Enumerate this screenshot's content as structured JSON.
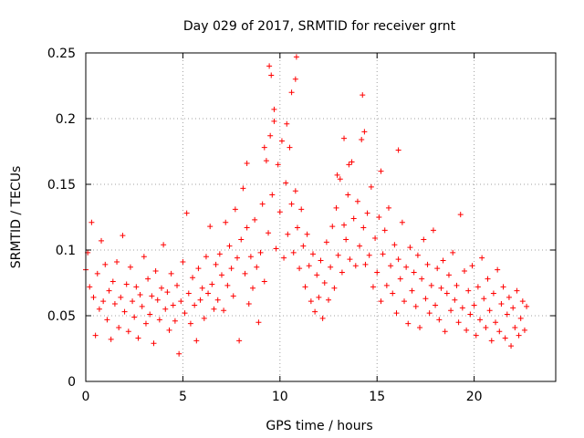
{
  "chart_data": {
    "type": "scatter",
    "title": "Day 029 of 2017, SRMTID for receiver grnt",
    "xlabel": "GPS time / hours",
    "ylabel": "SRMTID / TECUs",
    "xlim": [
      0,
      24.2
    ],
    "ylim": [
      0,
      0.25
    ],
    "xticks": [
      0,
      5,
      10,
      15,
      20
    ],
    "xtick_labels": [
      "0",
      "5",
      "10",
      "15",
      "20"
    ],
    "yticks": [
      0,
      0.05,
      0.1,
      0.15,
      0.2,
      0.25
    ],
    "ytick_labels": [
      "0",
      "0.05",
      "0.1",
      "0.15",
      "0.2",
      "0.25"
    ],
    "grid": true,
    "marker": "+",
    "color": "#ff0000",
    "series": [
      {
        "name": "SRMTID",
        "points": [
          [
            0.0,
            0.085
          ],
          [
            0.1,
            0.098
          ],
          [
            0.2,
            0.072
          ],
          [
            0.3,
            0.121
          ],
          [
            0.4,
            0.064
          ],
          [
            0.5,
            0.035
          ],
          [
            0.6,
            0.082
          ],
          [
            0.7,
            0.055
          ],
          [
            0.8,
            0.107
          ],
          [
            0.9,
            0.061
          ],
          [
            1.0,
            0.089
          ],
          [
            1.1,
            0.047
          ],
          [
            1.2,
            0.069
          ],
          [
            1.3,
            0.032
          ],
          [
            1.4,
            0.076
          ],
          [
            1.5,
            0.059
          ],
          [
            1.6,
            0.091
          ],
          [
            1.7,
            0.041
          ],
          [
            1.8,
            0.064
          ],
          [
            1.9,
            0.111
          ],
          [
            2.0,
            0.053
          ],
          [
            2.1,
            0.074
          ],
          [
            2.2,
            0.038
          ],
          [
            2.3,
            0.087
          ],
          [
            2.4,
            0.061
          ],
          [
            2.5,
            0.049
          ],
          [
            2.6,
            0.072
          ],
          [
            2.7,
            0.033
          ],
          [
            2.8,
            0.066
          ],
          [
            2.9,
            0.057
          ],
          [
            3.0,
            0.095
          ],
          [
            3.1,
            0.044
          ],
          [
            3.2,
            0.078
          ],
          [
            3.3,
            0.051
          ],
          [
            3.4,
            0.065
          ],
          [
            3.5,
            0.029
          ],
          [
            3.6,
            0.084
          ],
          [
            3.7,
            0.062
          ],
          [
            3.8,
            0.047
          ],
          [
            3.9,
            0.071
          ],
          [
            4.0,
            0.104
          ],
          [
            4.1,
            0.055
          ],
          [
            4.2,
            0.068
          ],
          [
            4.3,
            0.039
          ],
          [
            4.4,
            0.082
          ],
          [
            4.5,
            0.058
          ],
          [
            4.6,
            0.046
          ],
          [
            4.7,
            0.073
          ],
          [
            4.8,
            0.021
          ],
          [
            4.9,
            0.061
          ],
          [
            5.0,
            0.091
          ],
          [
            5.1,
            0.052
          ],
          [
            5.2,
            0.128
          ],
          [
            5.3,
            0.067
          ],
          [
            5.4,
            0.044
          ],
          [
            5.5,
            0.079
          ],
          [
            5.6,
            0.058
          ],
          [
            5.7,
            0.031
          ],
          [
            5.8,
            0.086
          ],
          [
            5.9,
            0.062
          ],
          [
            6.0,
            0.071
          ],
          [
            6.1,
            0.048
          ],
          [
            6.2,
            0.095
          ],
          [
            6.3,
            0.067
          ],
          [
            6.4,
            0.118
          ],
          [
            6.5,
            0.074
          ],
          [
            6.6,
            0.055
          ],
          [
            6.7,
            0.089
          ],
          [
            6.8,
            0.062
          ],
          [
            6.9,
            0.097
          ],
          [
            7.0,
            0.081
          ],
          [
            7.1,
            0.054
          ],
          [
            7.2,
            0.121
          ],
          [
            7.3,
            0.073
          ],
          [
            7.4,
            0.103
          ],
          [
            7.5,
            0.086
          ],
          [
            7.6,
            0.065
          ],
          [
            7.7,
            0.131
          ],
          [
            7.8,
            0.094
          ],
          [
            7.9,
            0.031
          ],
          [
            8.0,
            0.108
          ],
          [
            8.1,
            0.147
          ],
          [
            8.2,
            0.082
          ],
          [
            8.3,
            0.117
          ],
          [
            8.4,
            0.059
          ],
          [
            8.5,
            0.095
          ],
          [
            8.6,
            0.071
          ],
          [
            8.7,
            0.123
          ],
          [
            8.8,
            0.087
          ],
          [
            8.9,
            0.045
          ],
          [
            9.0,
            0.098
          ],
          [
            9.1,
            0.135
          ],
          [
            9.2,
            0.076
          ],
          [
            9.3,
            0.168
          ],
          [
            9.4,
            0.113
          ],
          [
            9.5,
            0.187
          ],
          [
            9.6,
            0.142
          ],
          [
            9.7,
            0.207
          ],
          [
            9.8,
            0.101
          ],
          [
            9.9,
            0.165
          ],
          [
            10.0,
            0.129
          ],
          [
            10.1,
            0.183
          ],
          [
            10.2,
            0.094
          ],
          [
            10.3,
            0.151
          ],
          [
            10.4,
            0.112
          ],
          [
            10.5,
            0.178
          ],
          [
            10.6,
            0.135
          ],
          [
            10.7,
            0.098
          ],
          [
            10.8,
            0.145
          ],
          [
            10.9,
            0.117
          ],
          [
            11.0,
            0.086
          ],
          [
            11.1,
            0.131
          ],
          [
            11.2,
            0.103
          ],
          [
            11.3,
            0.072
          ],
          [
            11.4,
            0.112
          ],
          [
            11.5,
            0.088
          ],
          [
            11.6,
            0.061
          ],
          [
            11.7,
            0.097
          ],
          [
            11.8,
            0.053
          ],
          [
            11.9,
            0.081
          ],
          [
            12.0,
            0.064
          ],
          [
            12.1,
            0.092
          ],
          [
            12.2,
            0.048
          ],
          [
            12.3,
            0.075
          ],
          [
            12.4,
            0.106
          ],
          [
            12.5,
            0.062
          ],
          [
            12.6,
            0.087
          ],
          [
            12.7,
            0.118
          ],
          [
            12.8,
            0.071
          ],
          [
            12.9,
            0.132
          ],
          [
            13.0,
            0.096
          ],
          [
            13.1,
            0.154
          ],
          [
            13.2,
            0.083
          ],
          [
            13.3,
            0.119
          ],
          [
            13.4,
            0.108
          ],
          [
            13.5,
            0.142
          ],
          [
            13.6,
            0.093
          ],
          [
            13.7,
            0.167
          ],
          [
            13.8,
            0.124
          ],
          [
            13.9,
            0.088
          ],
          [
            14.0,
            0.137
          ],
          [
            14.1,
            0.103
          ],
          [
            14.2,
            0.184
          ],
          [
            14.3,
            0.117
          ],
          [
            14.4,
            0.089
          ],
          [
            14.5,
            0.128
          ],
          [
            14.6,
            0.096
          ],
          [
            14.7,
            0.148
          ],
          [
            14.8,
            0.072
          ],
          [
            14.9,
            0.109
          ],
          [
            15.0,
            0.083
          ],
          [
            15.1,
            0.125
          ],
          [
            15.2,
            0.061
          ],
          [
            15.3,
            0.097
          ],
          [
            15.4,
            0.115
          ],
          [
            15.5,
            0.073
          ],
          [
            15.6,
            0.132
          ],
          [
            15.7,
            0.088
          ],
          [
            15.8,
            0.067
          ],
          [
            15.9,
            0.104
          ],
          [
            16.0,
            0.052
          ],
          [
            16.1,
            0.093
          ],
          [
            16.2,
            0.078
          ],
          [
            16.3,
            0.121
          ],
          [
            16.4,
            0.061
          ],
          [
            16.5,
            0.087
          ],
          [
            16.6,
            0.044
          ],
          [
            16.7,
            0.102
          ],
          [
            16.8,
            0.069
          ],
          [
            16.9,
            0.083
          ],
          [
            17.0,
            0.057
          ],
          [
            17.1,
            0.096
          ],
          [
            17.2,
            0.041
          ],
          [
            17.3,
            0.078
          ],
          [
            17.4,
            0.108
          ],
          [
            17.5,
            0.063
          ],
          [
            17.6,
            0.089
          ],
          [
            17.7,
            0.052
          ],
          [
            17.8,
            0.073
          ],
          [
            17.9,
            0.115
          ],
          [
            18.0,
            0.058
          ],
          [
            18.1,
            0.086
          ],
          [
            18.2,
            0.047
          ],
          [
            18.3,
            0.071
          ],
          [
            18.4,
            0.092
          ],
          [
            18.5,
            0.038
          ],
          [
            18.6,
            0.067
          ],
          [
            18.7,
            0.081
          ],
          [
            18.8,
            0.054
          ],
          [
            18.9,
            0.098
          ],
          [
            19.0,
            0.062
          ],
          [
            19.1,
            0.073
          ],
          [
            19.2,
            0.045
          ],
          [
            19.3,
            0.127
          ],
          [
            19.4,
            0.056
          ],
          [
            19.5,
            0.084
          ],
          [
            19.6,
            0.039
          ],
          [
            19.7,
            0.069
          ],
          [
            19.8,
            0.051
          ],
          [
            19.9,
            0.088
          ],
          [
            20.0,
            0.058
          ],
          [
            20.1,
            0.035
          ],
          [
            20.2,
            0.072
          ],
          [
            20.3,
            0.047
          ],
          [
            20.4,
            0.094
          ],
          [
            20.5,
            0.063
          ],
          [
            20.6,
            0.041
          ],
          [
            20.7,
            0.078
          ],
          [
            20.8,
            0.054
          ],
          [
            20.9,
            0.031
          ],
          [
            21.0,
            0.067
          ],
          [
            21.1,
            0.045
          ],
          [
            21.2,
            0.085
          ],
          [
            21.3,
            0.038
          ],
          [
            21.4,
            0.059
          ],
          [
            21.5,
            0.072
          ],
          [
            21.6,
            0.033
          ],
          [
            21.7,
            0.051
          ],
          [
            21.8,
            0.064
          ],
          [
            21.9,
            0.027
          ],
          [
            22.0,
            0.056
          ],
          [
            22.1,
            0.041
          ],
          [
            22.2,
            0.069
          ],
          [
            22.3,
            0.035
          ],
          [
            22.4,
            0.048
          ],
          [
            22.5,
            0.061
          ],
          [
            22.6,
            0.039
          ],
          [
            22.7,
            0.057
          ],
          [
            9.45,
            0.24
          ],
          [
            10.85,
            0.247
          ],
          [
            10.6,
            0.22
          ],
          [
            10.8,
            0.23
          ],
          [
            9.55,
            0.233
          ],
          [
            14.25,
            0.218
          ],
          [
            13.3,
            0.185
          ],
          [
            16.1,
            0.176
          ],
          [
            9.7,
            0.198
          ],
          [
            10.35,
            0.196
          ],
          [
            14.35,
            0.19
          ],
          [
            12.95,
            0.157
          ],
          [
            13.55,
            0.165
          ],
          [
            8.3,
            0.166
          ],
          [
            15.2,
            0.16
          ],
          [
            9.2,
            0.178
          ]
        ]
      }
    ]
  }
}
